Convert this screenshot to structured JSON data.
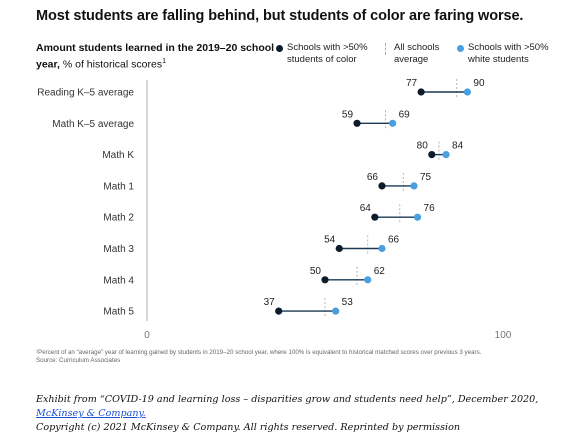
{
  "chart_data": {
    "type": "dumbbell",
    "title": "Most students are falling behind, but students of color are faring worse.",
    "subtitle_bold": "Amount students learned in the 2019–20 school year,",
    "subtitle_rest": " % of historical scores",
    "subtitle_sup": "1",
    "xlim": [
      0,
      100
    ],
    "x_ticks": [
      "0",
      "100"
    ],
    "grid": false,
    "legend_placement": "top-right",
    "series": [
      {
        "name": "Schools with >50% students of color",
        "color": "#0d1b2a",
        "values": [
          77,
          59,
          80,
          66,
          64,
          54,
          50,
          37
        ]
      },
      {
        "name": "All schools average",
        "color": "#b3b3b3",
        "values": [
          null,
          null,
          null,
          null,
          null,
          null,
          null,
          null
        ]
      },
      {
        "name": "Schools with >50% white students",
        "color": "#4a9fe0",
        "values": [
          90,
          69,
          84,
          75,
          76,
          66,
          62,
          53
        ]
      }
    ],
    "categories": [
      "Reading K–5 average",
      "Math K–5 average",
      "Math K",
      "Math 1",
      "Math 2",
      "Math 3",
      "Math 4",
      "Math 5"
    ],
    "average_markers": [
      87,
      67,
      82,
      72,
      71,
      62,
      59,
      50
    ]
  },
  "legend": {
    "color_label_1": "Schools with >50%",
    "color_label_2": "students of color",
    "avg_label_1": "All schools",
    "avg_label_2": "average",
    "white_label_1": "Schools with >50%",
    "white_label_2": "white students"
  },
  "footnote": {
    "line1": "¹Percent of an “average” year of learning gained by students in 2019–20 school year, where 100% is equivalent to historical matched scores over previous 3 years.",
    "line2": "Source: Curriculum Associates"
  },
  "credit": {
    "line1_prefix": "Exhibit from “COVID-19 and learning loss – disparities grow and students need help”, December 2020, ",
    "link": "McKinsey & Company.",
    "line2": "Copyright (c) 2021 McKinsey & Company. All rights reserved. Reprinted by permission"
  }
}
